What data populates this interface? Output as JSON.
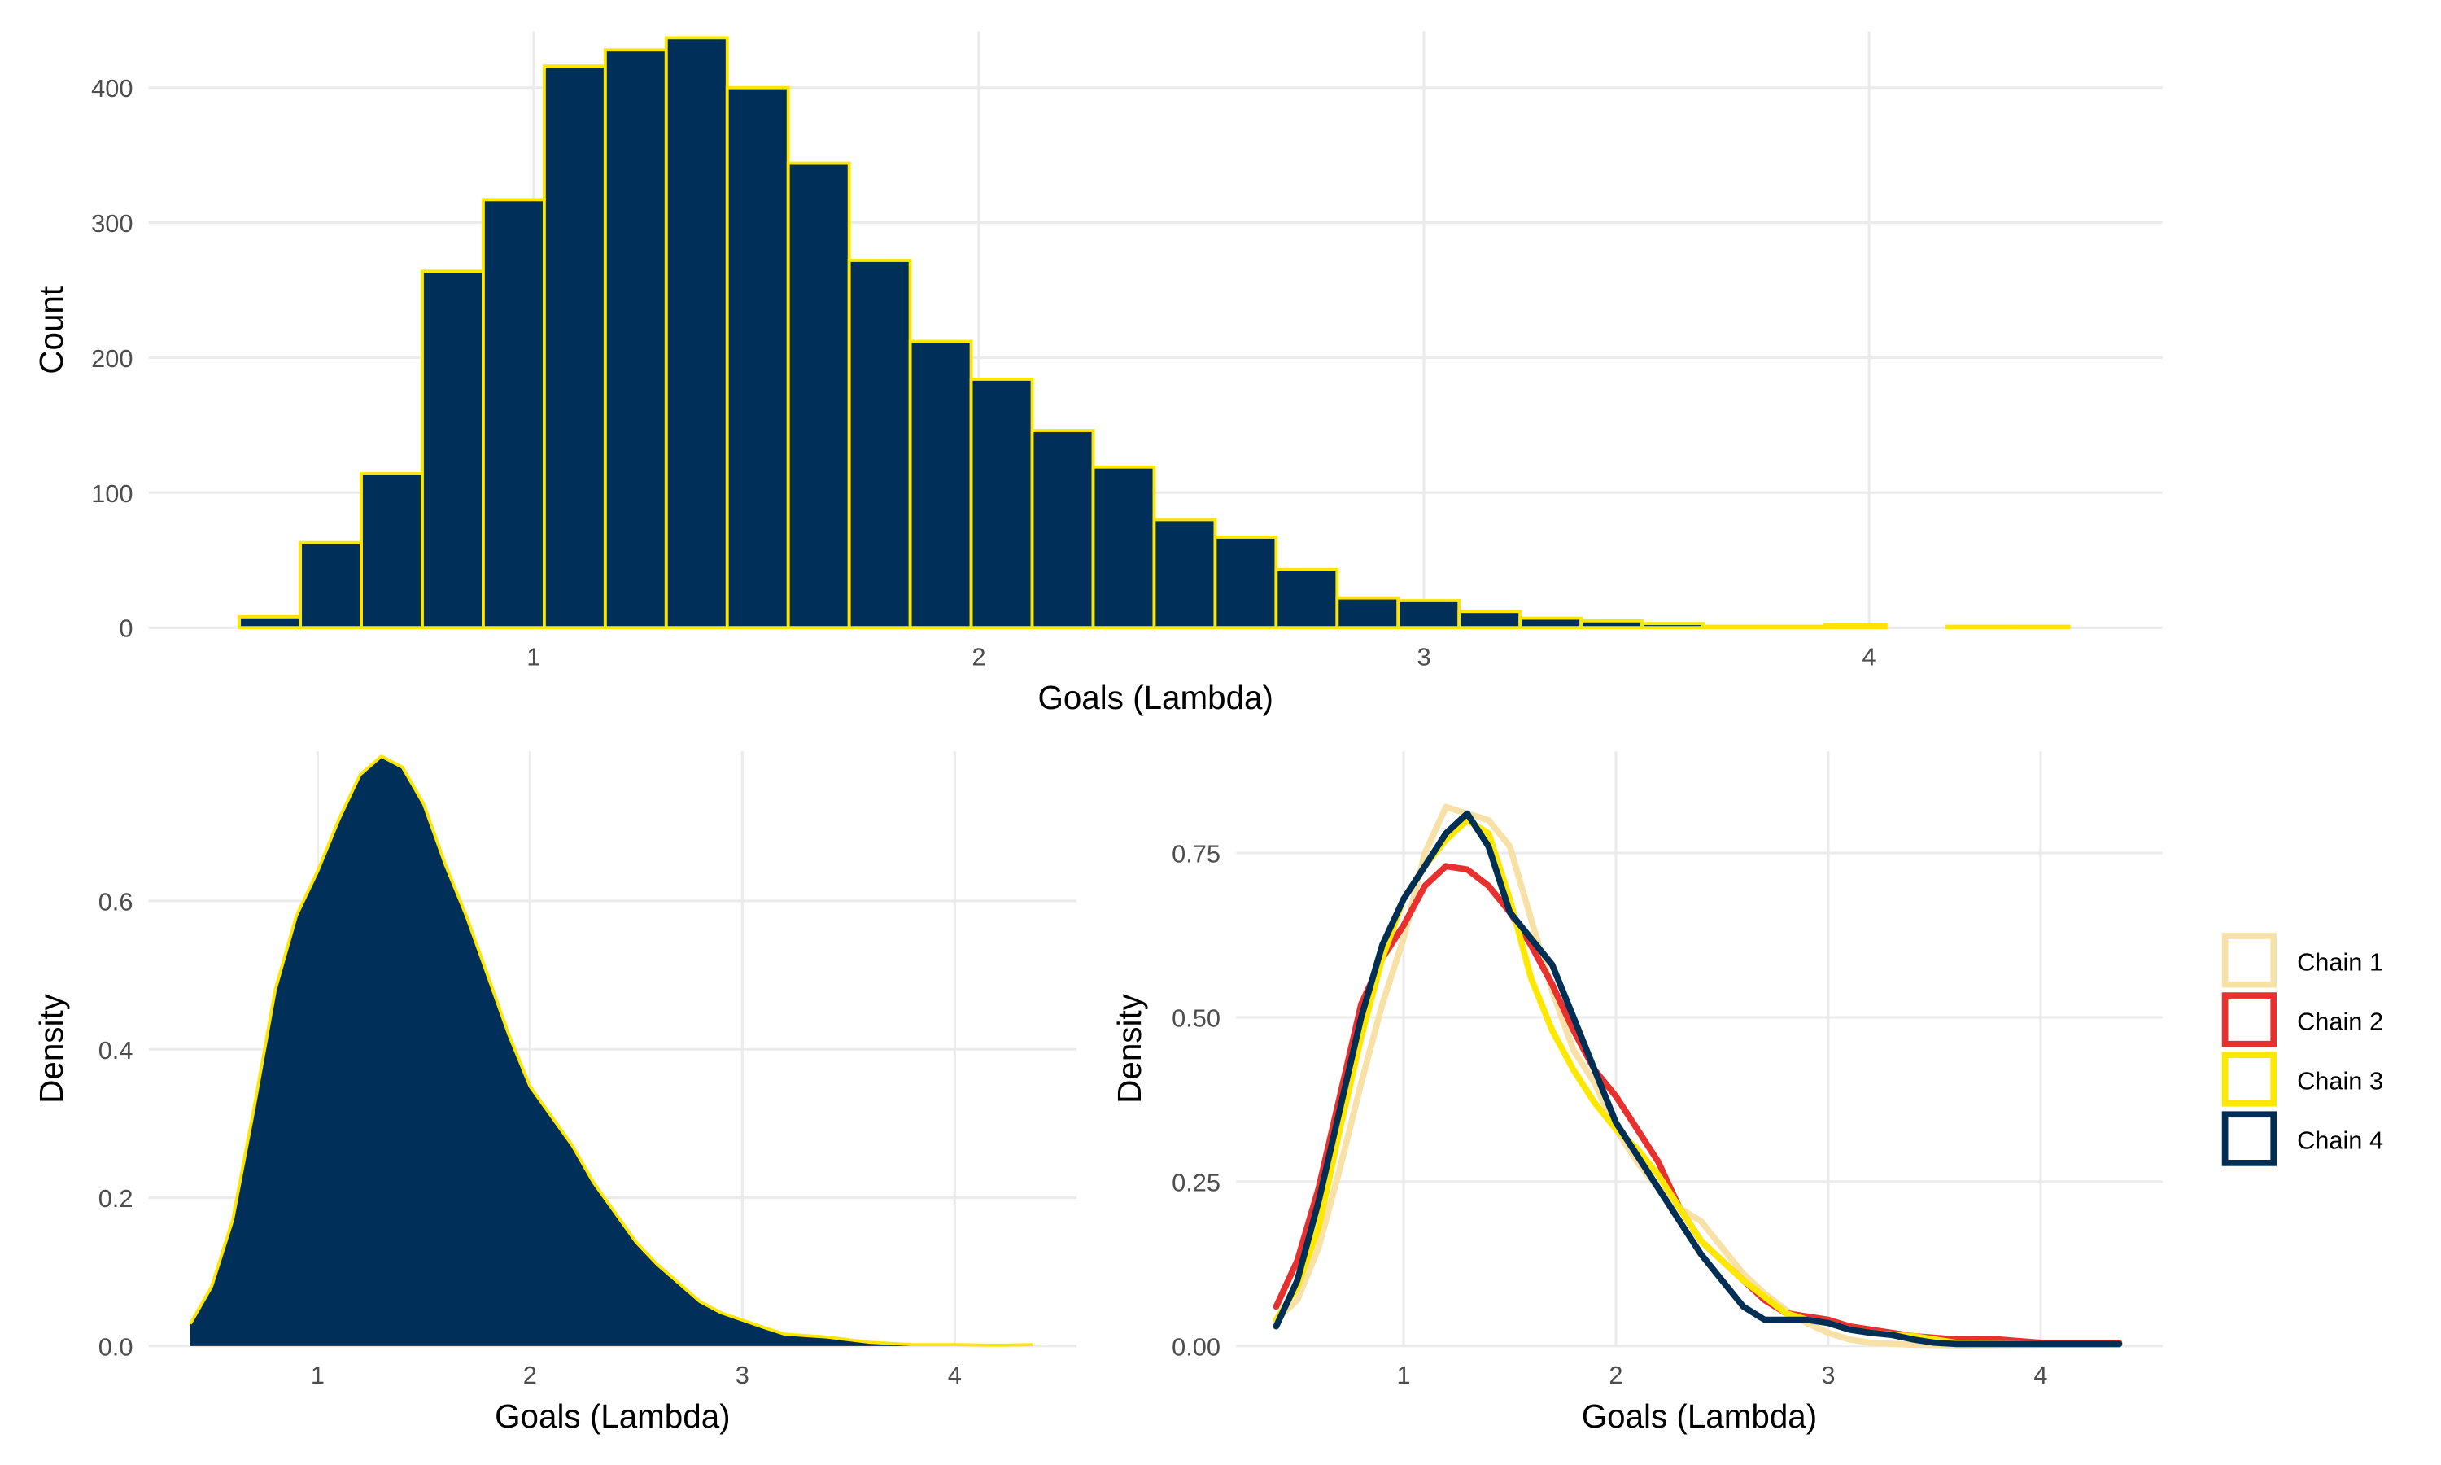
{
  "colors": {
    "fill": "#00305A",
    "outline": "#FFE600",
    "grid": "#EBEBEB"
  },
  "chart_data": [
    {
      "type": "bar",
      "subtype": "histogram",
      "xlabel": "Goals (Lambda)",
      "ylabel": "Count",
      "xticks": [
        1,
        2,
        3,
        4
      ],
      "yticks": [
        0,
        100,
        200,
        300,
        400
      ],
      "xlim": [
        -0.25,
        4.27
      ],
      "ylim": [
        0,
        442
      ],
      "grid": true,
      "bin_start": 0.339,
      "bin_width": 0.137,
      "counts": [
        8,
        63,
        114,
        264,
        317,
        416,
        428,
        437,
        400,
        344,
        272,
        212,
        184,
        146,
        119,
        80,
        67,
        43,
        22,
        20,
        12,
        7,
        5,
        3,
        1,
        1,
        2,
        0,
        1,
        1
      ]
    },
    {
      "type": "area",
      "xlabel": "Goals (Lambda)",
      "ylabel": "Density",
      "xticks": [
        1,
        2,
        3,
        4
      ],
      "yticks": [
        0.0,
        0.2,
        0.4,
        0.6
      ],
      "ytick_labels": [
        "0.0",
        "0.2",
        "0.4",
        "0.6"
      ],
      "xlim": [
        0.0,
        4.6
      ],
      "ylim": [
        0,
        0.8
      ],
      "grid": true,
      "x": [
        0.4,
        0.5,
        0.6,
        0.7,
        0.8,
        0.9,
        1.0,
        1.1,
        1.2,
        1.3,
        1.4,
        1.5,
        1.6,
        1.7,
        1.8,
        1.9,
        2.0,
        2.1,
        2.2,
        2.3,
        2.4,
        2.5,
        2.6,
        2.7,
        2.8,
        2.9,
        3.0,
        3.1,
        3.2,
        3.4,
        3.6,
        3.8,
        4.0,
        4.2,
        4.37
      ],
      "y": [
        0.03,
        0.08,
        0.17,
        0.32,
        0.48,
        0.58,
        0.64,
        0.71,
        0.77,
        0.795,
        0.78,
        0.73,
        0.65,
        0.58,
        0.5,
        0.42,
        0.35,
        0.31,
        0.27,
        0.22,
        0.18,
        0.14,
        0.11,
        0.085,
        0.06,
        0.045,
        0.035,
        0.025,
        0.016,
        0.012,
        0.005,
        0.002,
        0.002,
        0.001,
        0.002
      ]
    },
    {
      "type": "line",
      "xlabel": "Goals (Lambda)",
      "ylabel": "Density",
      "xticks": [
        1,
        2,
        3,
        4
      ],
      "yticks": [
        0.0,
        0.25,
        0.5,
        0.75
      ],
      "ytick_labels": [
        "0.00",
        "0.25",
        "0.50",
        "0.75"
      ],
      "xlim": [
        0.0,
        4.6
      ],
      "ylim": [
        0,
        0.9
      ],
      "grid": true,
      "legend": "right",
      "series": [
        {
          "name": "Chain 1",
          "color": "#F7E1A6",
          "x": [
            0.4,
            0.5,
            0.6,
            0.7,
            0.8,
            0.9,
            1.0,
            1.1,
            1.2,
            1.3,
            1.4,
            1.5,
            1.6,
            1.7,
            1.8,
            1.9,
            2.0,
            2.1,
            2.2,
            2.3,
            2.4,
            2.5,
            2.6,
            2.7,
            2.8,
            2.9,
            3.0,
            3.1,
            3.2,
            3.4,
            3.6,
            4.0,
            4.37
          ],
          "y": [
            0.04,
            0.07,
            0.15,
            0.27,
            0.4,
            0.52,
            0.62,
            0.75,
            0.82,
            0.81,
            0.8,
            0.76,
            0.65,
            0.54,
            0.45,
            0.4,
            0.33,
            0.28,
            0.24,
            0.21,
            0.19,
            0.15,
            0.11,
            0.08,
            0.055,
            0.035,
            0.02,
            0.01,
            0.005,
            0.002,
            0.001,
            0.002,
            0.002
          ]
        },
        {
          "name": "Chain 2",
          "color": "#E8302F",
          "x": [
            0.4,
            0.5,
            0.6,
            0.7,
            0.8,
            0.9,
            1.0,
            1.1,
            1.2,
            1.3,
            1.4,
            1.5,
            1.6,
            1.7,
            1.8,
            1.9,
            2.0,
            2.1,
            2.2,
            2.3,
            2.4,
            2.5,
            2.6,
            2.7,
            2.8,
            2.9,
            3.0,
            3.1,
            3.2,
            3.3,
            3.4,
            3.6,
            3.8,
            4.0,
            4.37
          ],
          "y": [
            0.06,
            0.13,
            0.24,
            0.38,
            0.52,
            0.59,
            0.64,
            0.7,
            0.73,
            0.725,
            0.7,
            0.66,
            0.61,
            0.55,
            0.48,
            0.42,
            0.38,
            0.33,
            0.28,
            0.21,
            0.16,
            0.13,
            0.1,
            0.07,
            0.05,
            0.045,
            0.04,
            0.03,
            0.025,
            0.02,
            0.015,
            0.01,
            0.01,
            0.005,
            0.005
          ]
        },
        {
          "name": "Chain 3",
          "color": "#FFE800",
          "x": [
            0.4,
            0.5,
            0.6,
            0.7,
            0.8,
            0.9,
            1.0,
            1.1,
            1.2,
            1.3,
            1.4,
            1.5,
            1.6,
            1.7,
            1.8,
            1.9,
            2.0,
            2.1,
            2.2,
            2.3,
            2.4,
            2.5,
            2.6,
            2.7,
            2.8,
            2.9,
            3.0,
            3.1,
            3.2,
            3.4,
            3.6,
            4.0,
            4.37
          ],
          "y": [
            0.04,
            0.09,
            0.18,
            0.33,
            0.47,
            0.59,
            0.68,
            0.73,
            0.77,
            0.8,
            0.78,
            0.68,
            0.56,
            0.48,
            0.42,
            0.37,
            0.33,
            0.3,
            0.26,
            0.21,
            0.16,
            0.13,
            0.1,
            0.075,
            0.05,
            0.04,
            0.035,
            0.025,
            0.02,
            0.015,
            0.005,
            0.003,
            0.003
          ]
        },
        {
          "name": "Chain 4",
          "color": "#002F56",
          "x": [
            0.4,
            0.5,
            0.6,
            0.7,
            0.8,
            0.9,
            1.0,
            1.1,
            1.2,
            1.3,
            1.4,
            1.5,
            1.6,
            1.7,
            1.8,
            1.9,
            2.0,
            2.1,
            2.2,
            2.3,
            2.4,
            2.5,
            2.6,
            2.7,
            2.8,
            2.9,
            3.0,
            3.1,
            3.2,
            3.3,
            3.4,
            3.5,
            3.6,
            4.0,
            4.37
          ],
          "y": [
            0.03,
            0.1,
            0.22,
            0.36,
            0.5,
            0.61,
            0.68,
            0.73,
            0.78,
            0.81,
            0.76,
            0.66,
            0.62,
            0.58,
            0.5,
            0.42,
            0.34,
            0.29,
            0.24,
            0.19,
            0.14,
            0.1,
            0.06,
            0.04,
            0.04,
            0.04,
            0.035,
            0.025,
            0.02,
            0.017,
            0.01,
            0.005,
            0.003,
            0.003,
            0.003
          ]
        }
      ]
    }
  ]
}
